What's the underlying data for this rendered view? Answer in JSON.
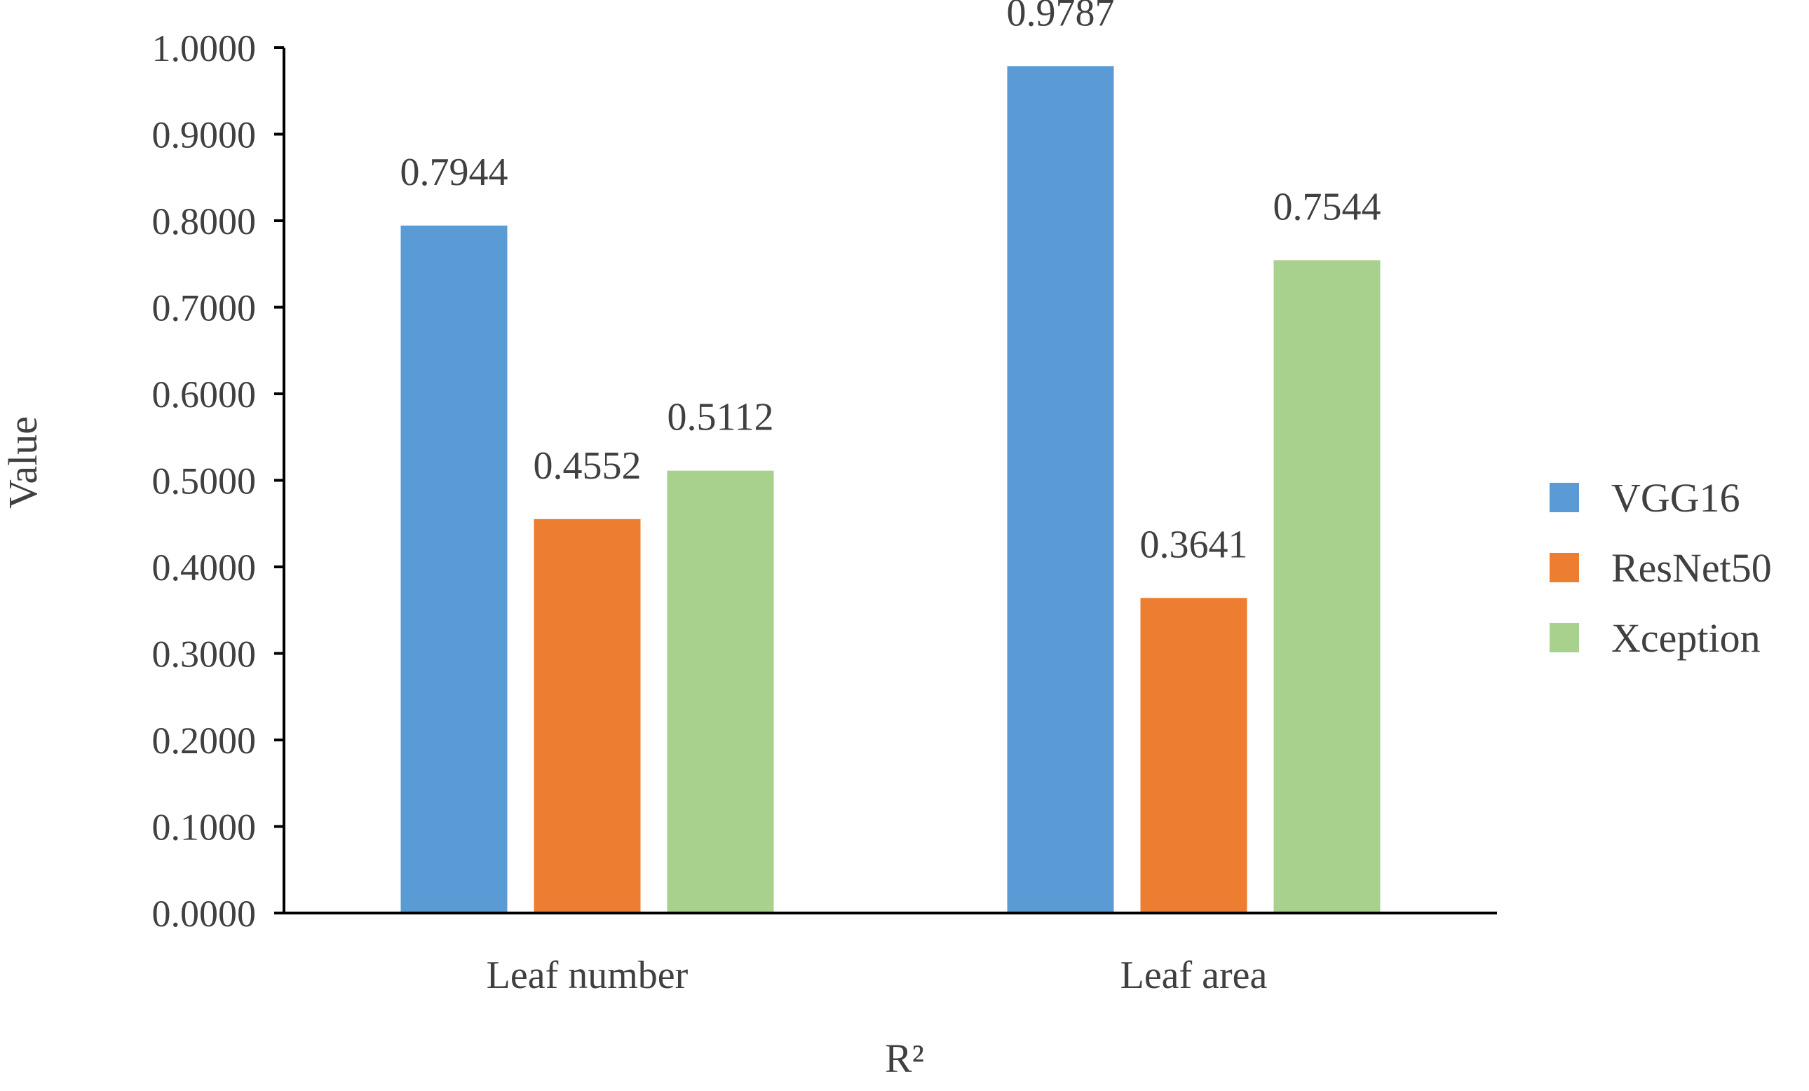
{
  "chart_data": {
    "type": "bar",
    "categories": [
      "Leaf number",
      "Leaf area"
    ],
    "series": [
      {
        "name": "VGG16",
        "values": [
          0.7944,
          0.9787
        ],
        "color": "#5B9BD5"
      },
      {
        "name": "ResNet50",
        "values": [
          0.4552,
          0.3641
        ],
        "color": "#ED7D31"
      },
      {
        "name": "Xception",
        "values": [
          0.5112,
          0.7544
        ],
        "color": "#A9D18E"
      }
    ],
    "data_labels": [
      [
        "0.7944",
        "0.9787"
      ],
      [
        "0.4552",
        "0.3641"
      ],
      [
        "0.5112",
        "0.7544"
      ]
    ],
    "yticks": [
      "0.0000",
      "0.1000",
      "0.2000",
      "0.3000",
      "0.4000",
      "0.5000",
      "0.6000",
      "0.7000",
      "0.8000",
      "0.9000",
      "1.0000"
    ],
    "ylim": [
      0,
      1
    ],
    "xlabel": "R²",
    "ylabel": "Value",
    "title": "",
    "legend": "right",
    "grid": false
  }
}
